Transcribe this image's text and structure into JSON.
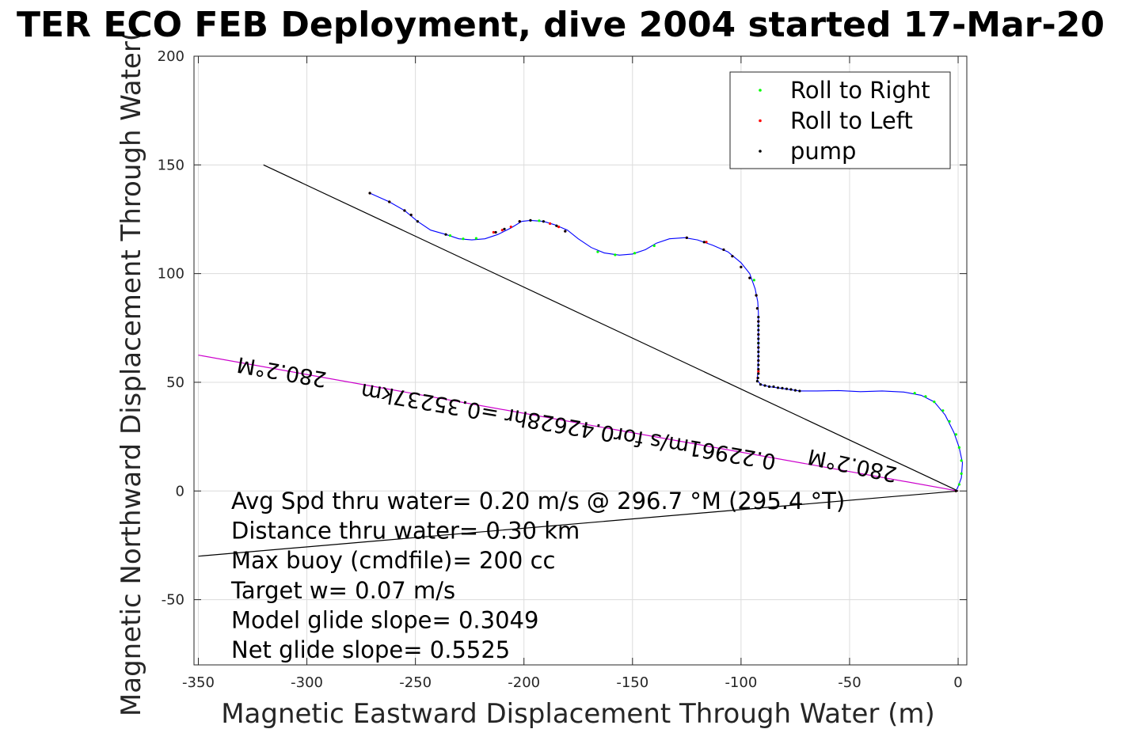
{
  "chart_data": {
    "type": "scatter",
    "title": "TER ECO FEB Deployment, dive 2004 started 17-Mar-20",
    "xlabel": "Magnetic Eastward Displacement Through Water (m)",
    "ylabel": "Magnetic Northward Displacement Through Water(",
    "xlim": [
      -352,
      4
    ],
    "ylim": [
      -80,
      200
    ],
    "xticks": [
      -350,
      -300,
      -250,
      -200,
      -150,
      -100,
      -50,
      0
    ],
    "yticks": [
      -50,
      0,
      50,
      100,
      150,
      200
    ],
    "grid": true,
    "legend_position": "top-right",
    "track": {
      "color": "#0000ff",
      "points": [
        [
          -271,
          137
        ],
        [
          -262,
          133
        ],
        [
          -255,
          129
        ],
        [
          -249,
          124
        ],
        [
          -243,
          120
        ],
        [
          -236,
          118
        ],
        [
          -230,
          116
        ],
        [
          -224,
          115.5
        ],
        [
          -218,
          116
        ],
        [
          -212,
          118
        ],
        [
          -206,
          121
        ],
        [
          -201,
          124
        ],
        [
          -197,
          124.5
        ],
        [
          -191,
          124
        ],
        [
          -186,
          122.5
        ],
        [
          -180,
          120
        ],
        [
          -175,
          116
        ],
        [
          -169,
          112
        ],
        [
          -163,
          109.5
        ],
        [
          -156,
          108.5
        ],
        [
          -150,
          109
        ],
        [
          -144,
          111
        ],
        [
          -139,
          114
        ],
        [
          -133,
          116
        ],
        [
          -126,
          116.5
        ],
        [
          -120,
          115.5
        ],
        [
          -113,
          113
        ],
        [
          -106,
          110
        ],
        [
          -100,
          105
        ],
        [
          -96,
          100
        ],
        [
          -93.5,
          93
        ],
        [
          -92.3,
          87
        ],
        [
          -92,
          82
        ],
        [
          -92,
          72
        ],
        [
          -92,
          62
        ],
        [
          -92.3,
          55
        ],
        [
          -92.5,
          51
        ],
        [
          -91,
          49
        ],
        [
          -87,
          48
        ],
        [
          -80,
          47
        ],
        [
          -73,
          46
        ],
        [
          -65,
          46
        ],
        [
          -55,
          46.2
        ],
        [
          -45,
          45.7
        ],
        [
          -35,
          46
        ],
        [
          -25,
          45.5
        ],
        [
          -17,
          44
        ],
        [
          -11,
          41
        ],
        [
          -6,
          35
        ],
        [
          -2,
          27
        ],
        [
          0.5,
          20
        ],
        [
          2,
          13
        ],
        [
          1.5,
          6
        ],
        [
          0,
          2
        ],
        [
          -1,
          0
        ]
      ]
    },
    "series": [
      {
        "name": "Roll to Right",
        "color": "#00ff00",
        "points": [
          [
            -234,
            117.5
          ],
          [
            -228,
            116
          ],
          [
            -222,
            116.2
          ],
          [
            -193,
            124.3
          ],
          [
            -166,
            110
          ],
          [
            -158,
            108.6
          ],
          [
            -149,
            109.4
          ],
          [
            -140,
            112.8
          ],
          [
            -94,
            97
          ],
          [
            -92,
            76
          ],
          [
            -92,
            68
          ],
          [
            -20,
            45
          ],
          [
            -15,
            43.5
          ],
          [
            -11,
            41
          ],
          [
            -7,
            37
          ],
          [
            -4,
            32
          ],
          [
            -1,
            26
          ],
          [
            0.5,
            20
          ],
          [
            1.5,
            14
          ],
          [
            1.5,
            8
          ],
          [
            0.5,
            3
          ]
        ]
      },
      {
        "name": "Roll to Left",
        "color": "#ff0000",
        "points": [
          [
            -271,
            137
          ],
          [
            -262,
            133
          ],
          [
            -255,
            129
          ],
          [
            -252,
            127
          ],
          [
            -214,
            119
          ],
          [
            -210,
            120
          ],
          [
            -206,
            121.5
          ],
          [
            -202,
            124
          ],
          [
            -188,
            123
          ],
          [
            -184,
            121.5
          ],
          [
            -181,
            119.5
          ],
          [
            -125,
            116.5
          ],
          [
            -116,
            114.5
          ],
          [
            -108,
            111
          ],
          [
            -104,
            108
          ],
          [
            -100,
            103
          ],
          [
            -96,
            98
          ],
          [
            -93,
            90
          ],
          [
            -92.5,
            84
          ],
          [
            -92,
            78
          ],
          [
            -92,
            72
          ],
          [
            -92,
            66
          ],
          [
            -92,
            60
          ],
          [
            -92,
            55
          ],
          [
            -92.3,
            52
          ],
          [
            -1,
            0
          ]
        ]
      },
      {
        "name": "pump",
        "color": "#000000",
        "points": [
          [
            -271,
            137
          ],
          [
            -262,
            133
          ],
          [
            -255,
            129
          ],
          [
            -252,
            127
          ],
          [
            -249,
            124
          ],
          [
            -236,
            118
          ],
          [
            -213,
            119
          ],
          [
            -209,
            120.5
          ],
          [
            -202,
            124
          ],
          [
            -197,
            124.5
          ],
          [
            -191,
            124
          ],
          [
            -185,
            122
          ],
          [
            -181,
            119.5
          ],
          [
            -125,
            116.5
          ],
          [
            -117,
            114.5
          ],
          [
            -108,
            111
          ],
          [
            -104,
            108
          ],
          [
            -100,
            103
          ],
          [
            -96,
            98
          ],
          [
            -93,
            90
          ],
          [
            -92.5,
            84
          ],
          [
            -92,
            80
          ],
          [
            -92,
            78
          ],
          [
            -92,
            76
          ],
          [
            -92,
            74
          ],
          [
            -92,
            72
          ],
          [
            -92,
            70
          ],
          [
            -92,
            68
          ],
          [
            -92,
            66
          ],
          [
            -92,
            64
          ],
          [
            -92,
            62
          ],
          [
            -92,
            60
          ],
          [
            -92,
            58
          ],
          [
            -92,
            56
          ],
          [
            -92,
            54
          ],
          [
            -92.2,
            52
          ],
          [
            -92.5,
            50.5
          ],
          [
            -91,
            49
          ],
          [
            -89,
            48.5
          ],
          [
            -87,
            48
          ],
          [
            -85,
            48
          ],
          [
            -83,
            47.5
          ],
          [
            -81,
            47.3
          ],
          [
            -79,
            47
          ],
          [
            -77,
            46.7
          ],
          [
            -75,
            46.3
          ],
          [
            -73,
            46
          ],
          [
            -1,
            0
          ]
        ]
      }
    ],
    "lines": [
      {
        "from": [
          -320,
          150
        ],
        "to": [
          0,
          0
        ],
        "color": "#000000"
      },
      {
        "from": [
          -350,
          62.5
        ],
        "to": [
          0,
          0
        ],
        "color": "#cc00cc"
      },
      {
        "from": [
          -350,
          -30
        ],
        "to": [
          0,
          0
        ],
        "color": "#000000"
      }
    ],
    "line_labels": [
      {
        "text": "280.2°M",
        "at": [
          -311,
          58
        ]
      },
      {
        "text": "0.22961m/s for0.42628hr =0.35237km",
        "at": [
          -179,
          33
        ]
      },
      {
        "text": "280.2°M",
        "at": [
          -48,
          15
        ]
      }
    ],
    "annotations": [
      "Avg Spd thru water=  0.20 m/s @ 296.7 °M (295.4 °T)",
      "Distance thru water=  0.30 km",
      "Max buoy (cmdfile)= 200 cc",
      "Target w= 0.07 m/s",
      "Model glide slope= 0.3049",
      "Net glide slope= 0.5525"
    ]
  }
}
